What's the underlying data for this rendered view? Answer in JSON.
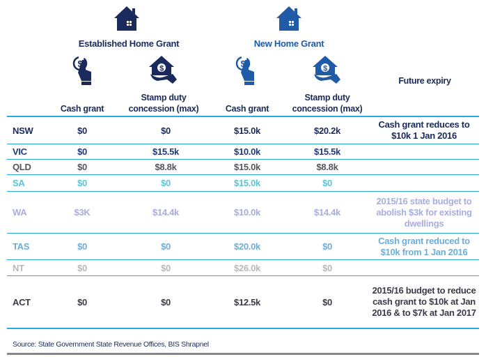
{
  "groups": {
    "established": "Established Home Grant",
    "new": "New Home Grant"
  },
  "columns": {
    "cash": "Cash grant",
    "stamp": "Stamp duty concession (max)",
    "expiry": "Future expiry"
  },
  "colors": {
    "established_icon": "#1b2a5c",
    "new_icon": "#1f5ba6",
    "rule": "#27a9e1"
  },
  "rows": [
    {
      "state": "NSW",
      "est_cash": "$0",
      "est_stamp": "$0",
      "new_cash": "$15.0k",
      "new_stamp": "$20.2k",
      "expiry": "Cash grant reduces to $10k 1 Jan 2016",
      "color": "#1b2a5c"
    },
    {
      "state": "VIC",
      "est_cash": "$0",
      "est_stamp": "$15.5k",
      "new_cash": "$10.0k",
      "new_stamp": "$15.5k",
      "expiry": "",
      "color": "#1e3a78"
    },
    {
      "state": "QLD",
      "est_cash": "$0",
      "est_stamp": "$8.8k",
      "new_cash": "$15.0k",
      "new_stamp": "$8.8k",
      "expiry": "",
      "color": "#55555c"
    },
    {
      "state": "SA",
      "est_cash": "$0",
      "est_stamp": "$0",
      "new_cash": "$15.0k",
      "new_stamp": "$0",
      "expiry": "",
      "color": "#5cc3d9"
    },
    {
      "state": "WA",
      "est_cash": "$3K",
      "est_stamp": "$14.4k",
      "new_cash": "$10.0k",
      "new_stamp": "$14.4k",
      "expiry": "2015/16 state budget to abolish $3k for existing dwellings",
      "color": "#a9addb"
    },
    {
      "state": "TAS",
      "est_cash": "$0",
      "est_stamp": "$0",
      "new_cash": "$20.0k",
      "new_stamp": "$0",
      "expiry": "Cash grant reduced to $10k from 1 Jan 2016",
      "color": "#6aaedc"
    },
    {
      "state": "NT",
      "est_cash": "$0",
      "est_stamp": "$0",
      "new_cash": "$26.0k",
      "new_stamp": "$0",
      "expiry": "",
      "color": "#b8b8bc"
    },
    {
      "state": "ACT",
      "est_cash": "$0",
      "est_stamp": "$0",
      "new_cash": "$12.5k",
      "new_stamp": "$0",
      "expiry": "2015/16 budget to reduce cash grant to $10k at Jan 2016 & to $7k at  Jan 2017",
      "color": "#3b3b48"
    }
  ],
  "source": "Source: State Government State Revenue Offices, BIS Shrapnel"
}
